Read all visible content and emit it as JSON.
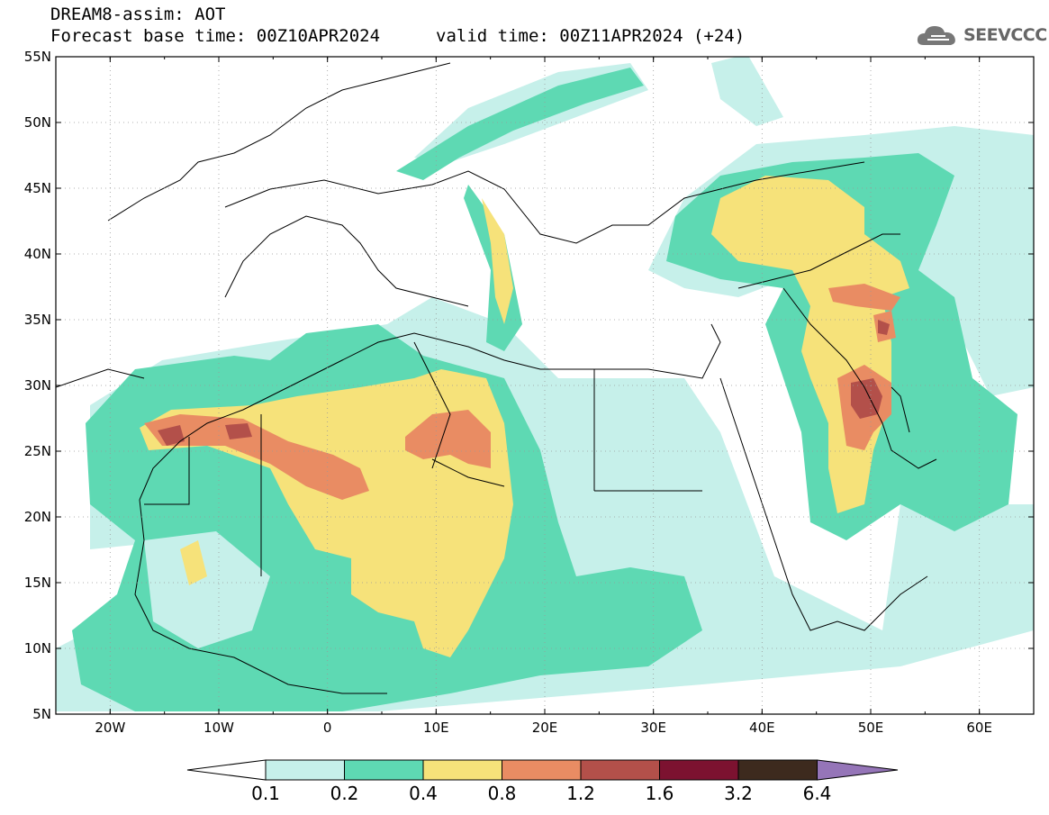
{
  "header": {
    "line1": "DREAM8-assim: AOT",
    "line2": "Forecast base time: 00Z10APR2024",
    "valid": "valid time: 00Z11APR2024 (+24)"
  },
  "logo": {
    "text": "SEEVCCC",
    "icon": "cloud-icon"
  },
  "map": {
    "lat_labels": [
      "55N",
      "50N",
      "45N",
      "40N",
      "35N",
      "30N",
      "25N",
      "20N",
      "15N",
      "10N",
      "5N"
    ],
    "lon_labels": [
      "20W",
      "10W",
      "0",
      "10E",
      "20E",
      "30E",
      "40E",
      "50E",
      "60E"
    ],
    "lat_range": [
      5,
      55
    ],
    "lon_range": [
      -25,
      65
    ],
    "grid": true
  },
  "colorbar": {
    "labels": [
      "0.1",
      "0.2",
      "0.4",
      "0.8",
      "1.2",
      "1.6",
      "3.2",
      "6.4"
    ],
    "colors": [
      "#c6f0ea",
      "#5ed9b3",
      "#f6e27a",
      "#e98c63",
      "#b3504a",
      "#7c1230",
      "#3d2a1e"
    ],
    "under_color": "#ffffff",
    "over_color": "#9575b8"
  }
}
